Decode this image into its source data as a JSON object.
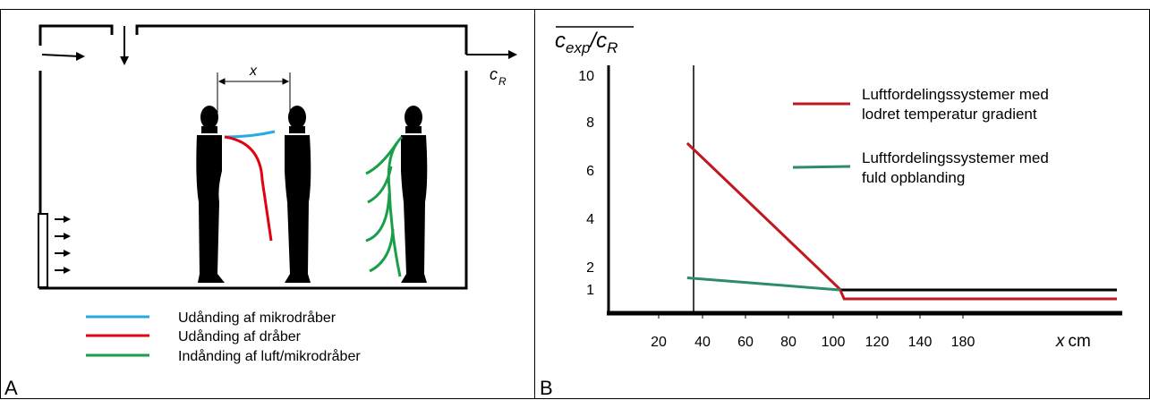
{
  "panel_a": {
    "letter": "A",
    "distance_label": "x",
    "outlet_label": "c",
    "outlet_sub": "R",
    "legend": [
      {
        "label": "Udånding af mikrodråber",
        "color": "#29abe2"
      },
      {
        "label": "Udånding af dråber",
        "color": "#e3000f"
      },
      {
        "label": "Indånding af luft/mikrodråber",
        "color": "#1a9e4a"
      }
    ]
  },
  "panel_b": {
    "letter": "B",
    "y_title_main": "c",
    "y_title_sub": "exp",
    "y_title_slash": "/c",
    "y_title_r": "R",
    "x_unit_label": "x cm",
    "y_ticks": [
      "10",
      "8",
      "6",
      "4",
      "2",
      "1"
    ],
    "x_ticks": [
      "20",
      "40",
      "60",
      "80",
      "100",
      "120",
      "140",
      "180"
    ],
    "legend": [
      {
        "label_line1": "Luftfordelingssystemer med",
        "label_line2": "lodret temperatur gradient",
        "color": "#c0181f"
      },
      {
        "label_line1": "Luftfordelingssystemer med",
        "label_line2": "fuld opblanding",
        "color": "#2e8b6e"
      }
    ]
  },
  "chart_data": {
    "type": "line",
    "xlabel": "x cm",
    "ylabel": "c_exp/c_R",
    "series": [
      {
        "name": "Luftfordelingssystemer med lodret temperatur gradient",
        "x": [
          33,
          103,
          105,
          200
        ],
        "y": [
          7,
          1,
          0.7,
          0.7
        ]
      },
      {
        "name": "Luftfordelingssystemer med fuld opblanding",
        "x": [
          33,
          103
        ],
        "y": [
          1.5,
          0.9
        ]
      }
    ],
    "reference_line": {
      "y": 0.9,
      "x_start": 103
    }
  }
}
